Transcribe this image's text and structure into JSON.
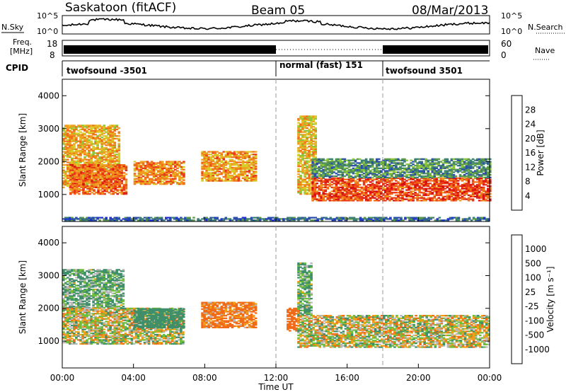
{
  "header": {
    "station": "Saskatoon (fitACF)",
    "beam": "Beam 05",
    "date": "08/Mar/2013"
  },
  "nsky_panel": {
    "left_label": "N.Sky",
    "right_label": "N.Search",
    "left_ticks": [
      "10^5",
      "10^0"
    ],
    "right_ticks": [
      "10^5",
      "10^0"
    ]
  },
  "freq_panel": {
    "left_label_line1": "Freq.",
    "left_label_line2": "[MHz]",
    "left_ticks": [
      "18",
      "8"
    ],
    "right_ticks": [
      "60",
      "0"
    ],
    "right_label": "Nave"
  },
  "cpid": {
    "label": "CPID",
    "segments": [
      {
        "name": "twofsound -3501",
        "start_hour": 0,
        "end_hour": 12
      },
      {
        "name": "normal (fast) 151",
        "start_hour": 12,
        "end_hour": 18
      },
      {
        "name": "twofsound 3501",
        "start_hour": 18,
        "end_hour": 24
      }
    ]
  },
  "x_axis": {
    "label": "Time UT",
    "ticks": [
      "00:00",
      "04:00",
      "08:00",
      "12:00",
      "16:00",
      "20:00",
      "00:00"
    ],
    "range_hours": [
      0,
      24
    ]
  },
  "colors": {
    "power": [
      "#1f2fd8",
      "#2b4faa",
      "#3c7f74",
      "#5c9a4a",
      "#8ac63a",
      "#d6cc2a",
      "#f0a020",
      "#f07018",
      "#e83818",
      "#d81010"
    ],
    "velocity": [
      "#2030b0",
      "#3b6fa8",
      "#3f8f6a",
      "#6fbe3a",
      "#b8b8b8",
      "#f0a018",
      "#f06a18",
      "#e03010"
    ]
  },
  "chart_data": [
    {
      "type": "heatmap",
      "title": "Power",
      "ylabel": "Slant Range [km]",
      "xlabel": "",
      "xlim_hours": [
        0,
        24
      ],
      "ylim": [
        180,
        4500
      ],
      "yticks": [
        "1000",
        "2000",
        "3000",
        "4000"
      ],
      "colorbar": {
        "label": "Power [dB]",
        "ticks": [
          "4",
          "8",
          "12",
          "16",
          "20",
          "24",
          "28"
        ],
        "range": [
          0,
          30
        ]
      },
      "echo_regions": [
        {
          "t_start": 0.0,
          "t_end": 3.2,
          "r_min": 1200,
          "r_max": 3100,
          "value": 19
        },
        {
          "t_start": 0.4,
          "t_end": 3.6,
          "r_min": 1000,
          "r_max": 1900,
          "value": 23
        },
        {
          "t_start": 4.0,
          "t_end": 6.8,
          "r_min": 1300,
          "r_max": 2000,
          "value": 21
        },
        {
          "t_start": 7.8,
          "t_end": 10.8,
          "r_min": 1400,
          "r_max": 2300,
          "value": 20
        },
        {
          "t_start": 13.2,
          "t_end": 14.2,
          "r_min": 1000,
          "r_max": 3400,
          "value": 18
        },
        {
          "t_start": 14.0,
          "t_end": 24.0,
          "r_min": 800,
          "r_max": 1500,
          "value": 25
        },
        {
          "t_start": 14.0,
          "t_end": 24.0,
          "r_min": 1500,
          "r_max": 2100,
          "value": 9
        },
        {
          "t_start": 0.0,
          "t_end": 24.0,
          "r_min": 200,
          "r_max": 320,
          "value": 6
        }
      ]
    },
    {
      "type": "heatmap",
      "title": "Velocity",
      "ylabel": "Slant Range [km]",
      "xlabel": "Time UT",
      "xlim_hours": [
        0,
        24
      ],
      "ylim": [
        180,
        4500
      ],
      "yticks": [
        "1000",
        "2000",
        "3000",
        "4000"
      ],
      "colorbar": {
        "label": "Velocity [m s⁻¹]",
        "ticks": [
          "1000",
          "500",
          "100",
          "25",
          "-25",
          "-100",
          "-500",
          "-1000"
        ],
        "range": [
          -1000,
          1000
        ]
      },
      "echo_regions": [
        {
          "t_start": 0.0,
          "t_end": 3.4,
          "r_min": 2000,
          "r_max": 3200,
          "value": 120
        },
        {
          "t_start": 0.0,
          "t_end": 6.8,
          "r_min": 900,
          "r_max": 2000,
          "value": 0
        },
        {
          "t_start": 4.0,
          "t_end": 6.8,
          "r_min": 1400,
          "r_max": 2000,
          "value": 300
        },
        {
          "t_start": 7.8,
          "t_end": 10.8,
          "r_min": 1400,
          "r_max": 2200,
          "value": -150
        },
        {
          "t_start": 12.6,
          "t_end": 13.2,
          "r_min": 1300,
          "r_max": 2000,
          "value": -300
        },
        {
          "t_start": 13.2,
          "t_end": 24.0,
          "r_min": 800,
          "r_max": 1800,
          "value": 0
        },
        {
          "t_start": 13.2,
          "t_end": 14.0,
          "r_min": 1800,
          "r_max": 3400,
          "value": 100
        }
      ]
    }
  ]
}
